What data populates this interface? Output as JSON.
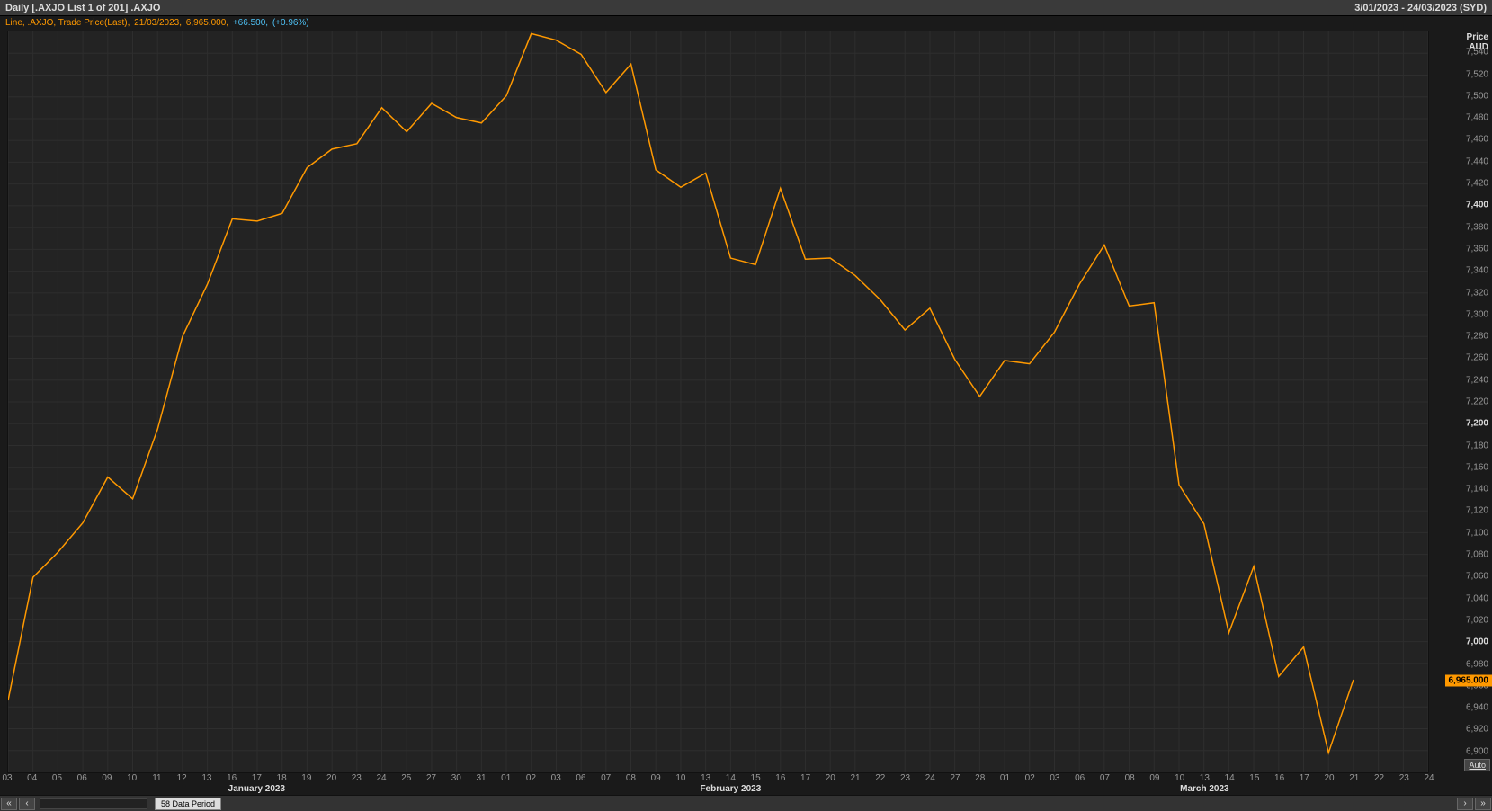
{
  "header": {
    "title_left": "Daily [.AXJO List 1 of 201] .AXJO",
    "title_right": "3/01/2023 - 24/03/2023 (SYD)"
  },
  "info": {
    "segments": [
      {
        "text": "Line, .AXJO, Trade Price(Last),",
        "color": "#ff9900"
      },
      {
        "text": "21/03/2023,",
        "color": "#ff9900"
      },
      {
        "text": "6,965.000,",
        "color": "#ff9900"
      },
      {
        "text": "+66.500,",
        "color": "#4fc3f7"
      },
      {
        "text": "(+0.96%)",
        "color": "#4fc3f7"
      }
    ]
  },
  "chart": {
    "type": "line",
    "line_color": "#ff9900",
    "background_color": "#232323",
    "grid_color": "#2e2e2e",
    "y_axis": {
      "title1": "Price",
      "title2": "AUD",
      "min": 6880,
      "max": 7560,
      "ticks": [
        6900,
        6920,
        6940,
        6960,
        6980,
        7000,
        7020,
        7040,
        7060,
        7080,
        7100,
        7120,
        7140,
        7160,
        7180,
        7200,
        7220,
        7240,
        7260,
        7280,
        7300,
        7320,
        7340,
        7360,
        7380,
        7400,
        7420,
        7440,
        7460,
        7480,
        7500,
        7520,
        7540
      ],
      "bold_ticks": [
        7000,
        7200,
        7400
      ],
      "current_marker": {
        "value": 6965,
        "label": "6,965.000"
      },
      "auto_label": "Auto"
    },
    "x_axis": {
      "labels": [
        "03",
        "04",
        "05",
        "06",
        "09",
        "10",
        "11",
        "12",
        "13",
        "16",
        "17",
        "18",
        "19",
        "20",
        "23",
        "24",
        "25",
        "27",
        "30",
        "31",
        "01",
        "02",
        "03",
        "06",
        "07",
        "08",
        "09",
        "10",
        "13",
        "14",
        "15",
        "16",
        "17",
        "20",
        "21",
        "22",
        "23",
        "24",
        "27",
        "28",
        "01",
        "02",
        "03",
        "06",
        "07",
        "08",
        "09",
        "10",
        "13",
        "14",
        "15",
        "16",
        "17",
        "20",
        "21",
        "22",
        "23",
        "24"
      ],
      "months": [
        {
          "label": "January 2023",
          "index": 10
        },
        {
          "label": "February 2023",
          "index": 29
        },
        {
          "label": "March 2023",
          "index": 48
        }
      ]
    },
    "series": [
      6946,
      7059,
      7082,
      7109,
      7151,
      7131,
      7195,
      7280,
      7328,
      7388,
      7386,
      7393,
      7435,
      7452,
      7457,
      7490,
      7468,
      7494,
      7481,
      7476,
      7501,
      7558,
      7552,
      7539,
      7504,
      7530,
      7433,
      7417,
      7430,
      7352,
      7346,
      7416,
      7351,
      7352,
      7336,
      7314,
      7286,
      7306,
      7259,
      7225,
      7258,
      7255,
      7284,
      7328,
      7364,
      7308,
      7311,
      7144,
      7108,
      7008,
      7069,
      6968,
      6995,
      6898,
      6965
    ]
  },
  "bottom": {
    "data_period": "58 Data Period"
  }
}
